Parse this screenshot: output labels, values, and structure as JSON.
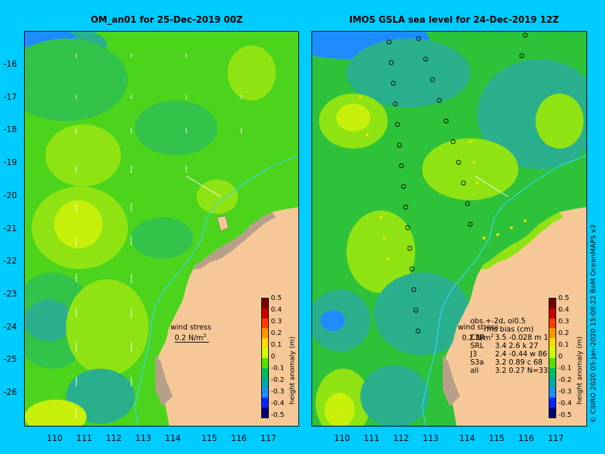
{
  "left_panel": {
    "title": "OM_an01 for 25-Dec-2019 00Z",
    "wind_label": "wind stress",
    "wind_value": "0.2 N/m",
    "wind_sup": "2"
  },
  "right_panel": {
    "title": "IMOS GSLA sea level  for 24-Dec-2019 12Z",
    "wind_label": "wind stress",
    "wind_value": "0.2 N/m",
    "wind_sup": "2",
    "stats": {
      "header1": "obs.+-2d, oi0.5",
      "header2": "rms   bias (cm)",
      "rows": [
        {
          "name": "C2R",
          "values": "3.5 -0.028 m 1"
        },
        {
          "name": "SRL",
          "values": "3.4  2.6 k 27"
        },
        {
          "name": "J3",
          "values": "2.4 -0.44 w 86"
        },
        {
          "name": "S3a",
          "values": "3.2  0.89 c 68"
        },
        {
          "name": "all",
          "values": "3.2  0.27 N=332"
        }
      ]
    }
  },
  "axes": {
    "y_ticks": [
      "-16",
      "-17",
      "-18",
      "-19",
      "-20",
      "-21",
      "-22",
      "-23",
      "-24",
      "-25",
      "-26"
    ],
    "x_ticks": [
      "110",
      "111",
      "112",
      "113",
      "114",
      "115",
      "116",
      "117"
    ]
  },
  "colorbar": {
    "label": "height anomaly (m)",
    "ticks": [
      "0.5",
      "0.4",
      "0.3",
      "0.2",
      "0.1",
      "0",
      "-0.1",
      "-0.2",
      "-0.3",
      "-0.4",
      "-0.5"
    ],
    "colors": [
      "#7a0000",
      "#c80000",
      "#ff3c00",
      "#ff9600",
      "#ffdc00",
      "#ccff00",
      "#55e000",
      "#00bf5f",
      "#00a8a8",
      "#1e8cff",
      "#0028ff",
      "#00007a"
    ]
  },
  "credit": "© CSIRO 2020   05-Jan-2020 15:08:22 BoM OceanMAPS v3"
}
